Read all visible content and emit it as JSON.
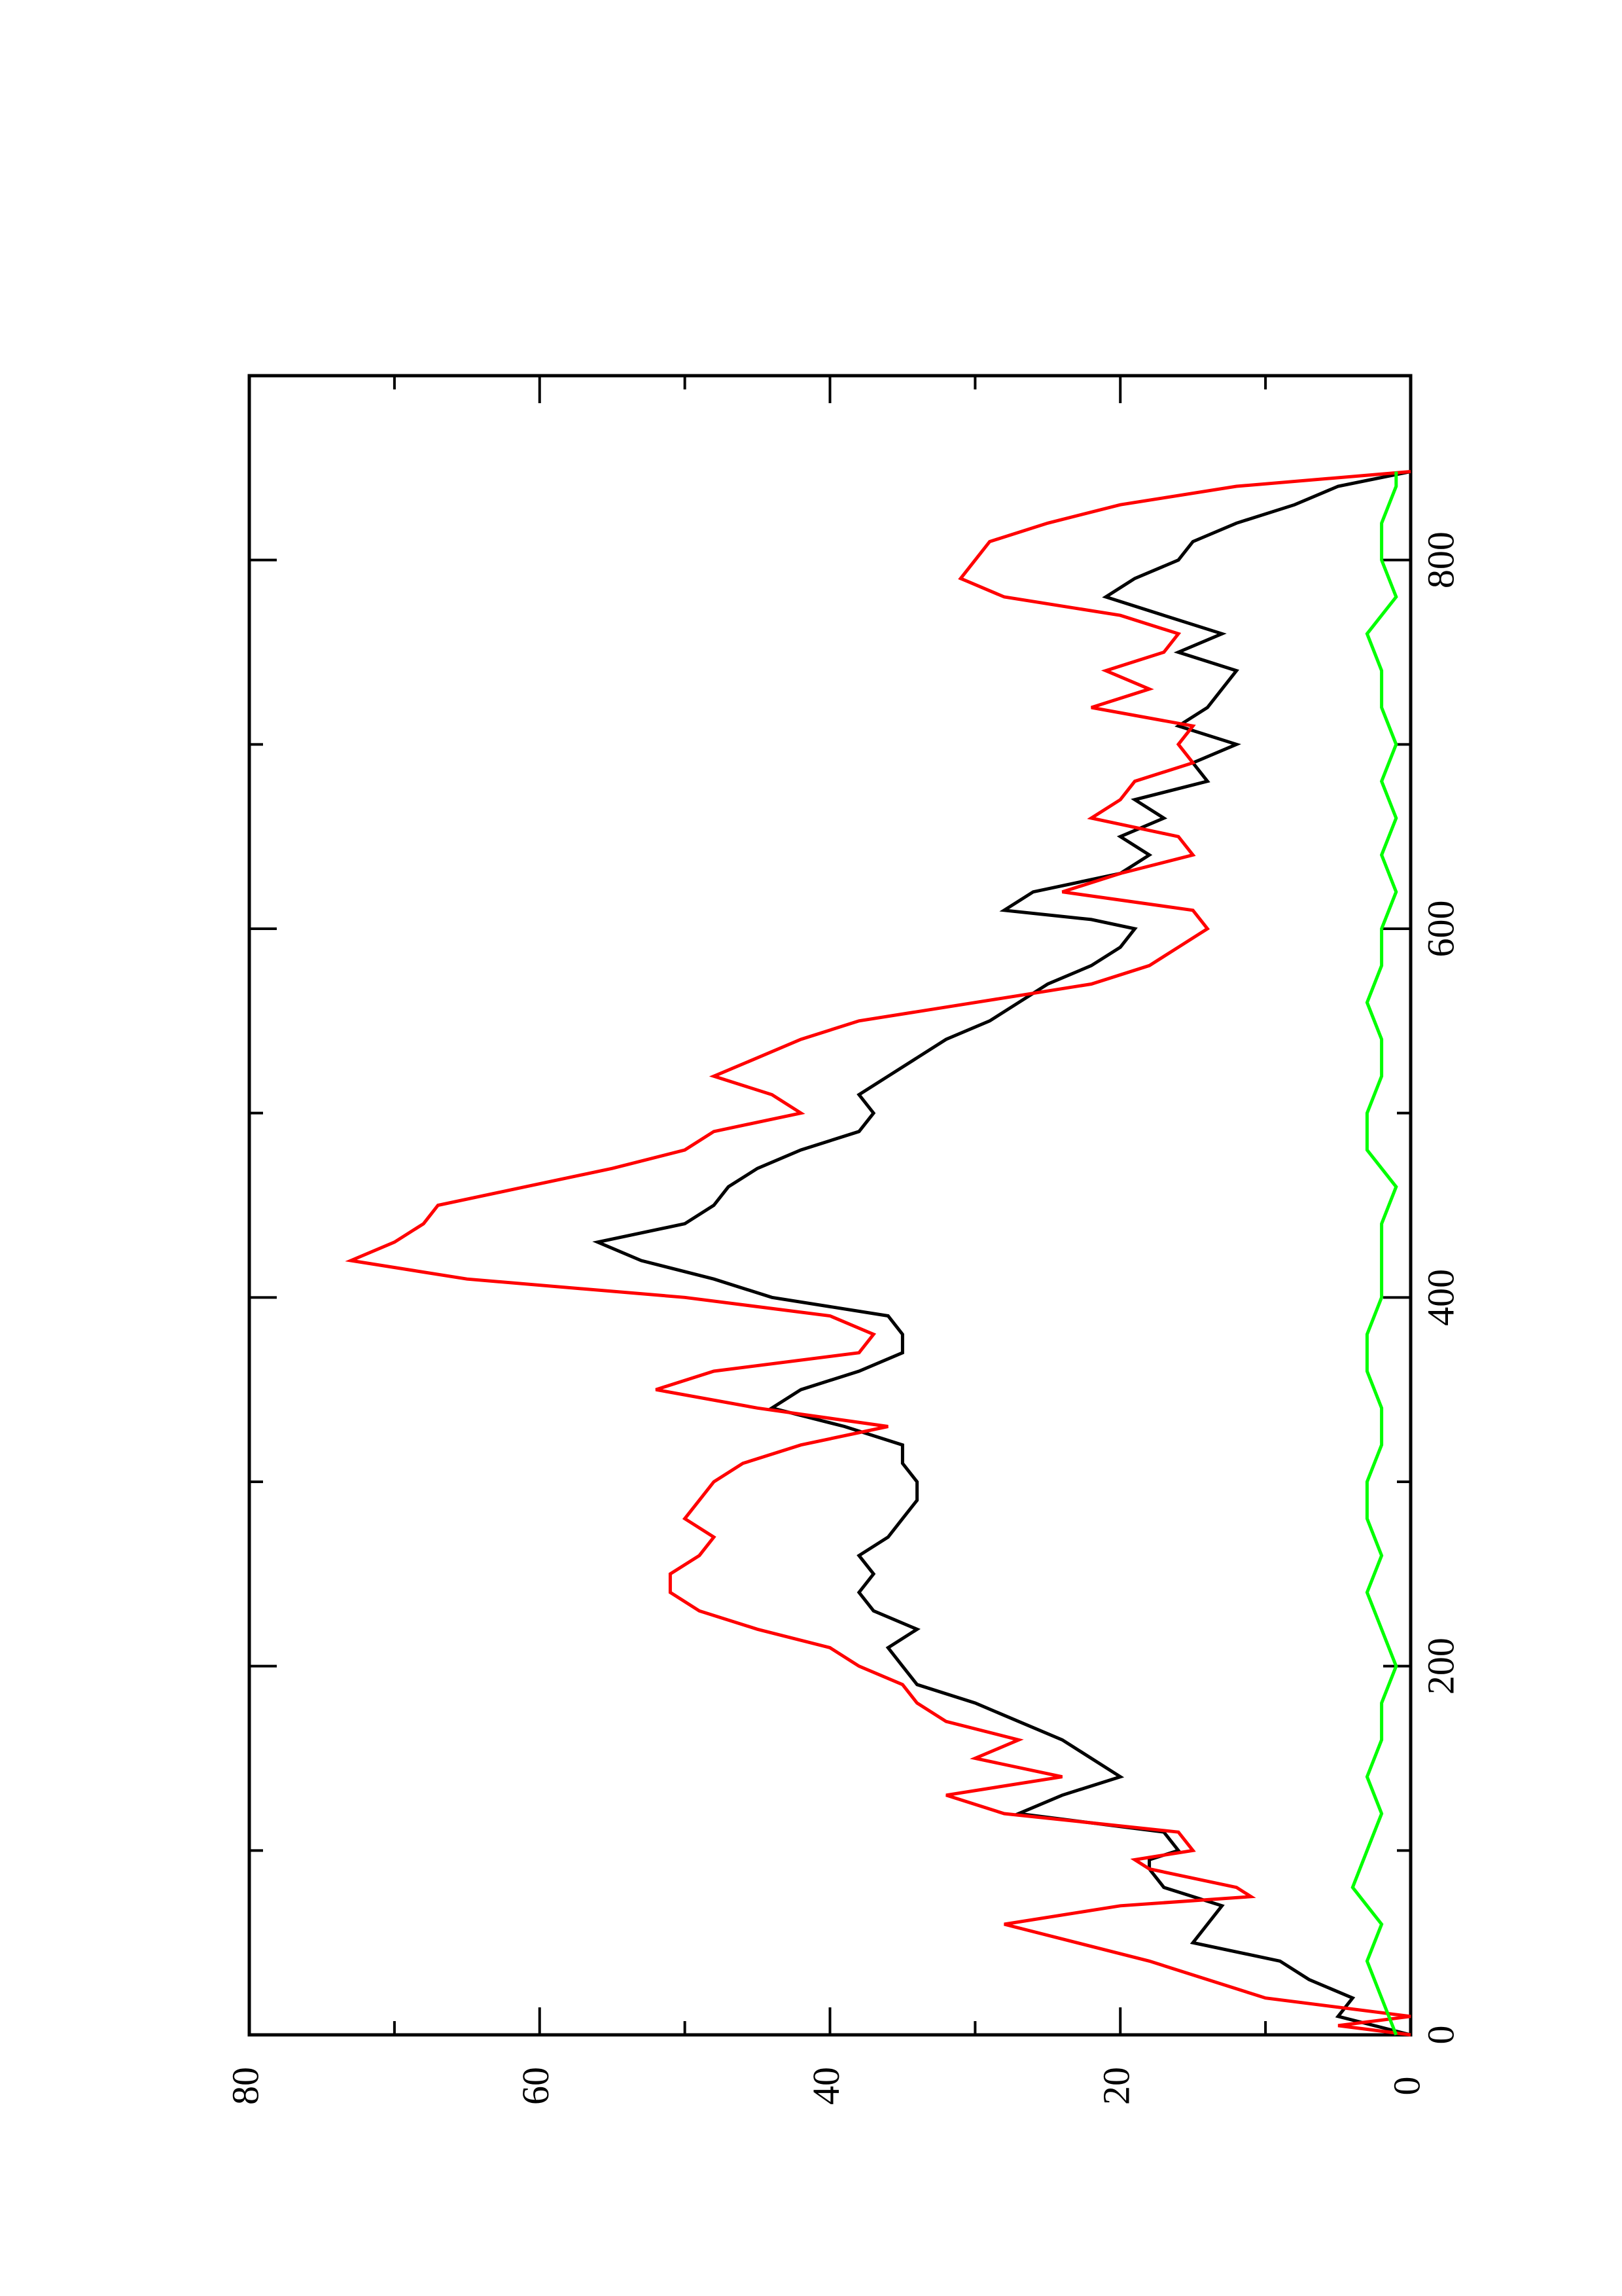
{
  "chart_data": {
    "type": "line",
    "orientation": "rotated 90° counter-clockwise",
    "title": "",
    "xlabel": "",
    "ylabel": "",
    "xlim": [
      0,
      900
    ],
    "ylim": [
      0,
      80
    ],
    "x_ticks": [
      0,
      200,
      400,
      600,
      800
    ],
    "x_minor_ticks": [
      100,
      300,
      500,
      700
    ],
    "y_ticks": [
      0,
      20,
      40,
      60,
      80
    ],
    "y_minor_ticks": [
      10,
      30,
      50,
      70
    ],
    "grid": false,
    "legend": "none",
    "series": [
      {
        "color": "#000000",
        "x": [
          0,
          10,
          20,
          30,
          40,
          50,
          60,
          70,
          80,
          90,
          95,
          100,
          110,
          120,
          130,
          140,
          150,
          160,
          170,
          180,
          190,
          200,
          210,
          220,
          230,
          240,
          250,
          260,
          270,
          280,
          290,
          300,
          310,
          320,
          330,
          340,
          350,
          360,
          370,
          380,
          390,
          400,
          410,
          420,
          430,
          440,
          450,
          460,
          470,
          480,
          490,
          500,
          510,
          520,
          530,
          540,
          550,
          560,
          570,
          580,
          590,
          600,
          605,
          610,
          620,
          630,
          640,
          650,
          660,
          670,
          680,
          690,
          700,
          710,
          720,
          730,
          740,
          750,
          760,
          770,
          780,
          790,
          800,
          810,
          820,
          830,
          840,
          848
        ],
        "y": [
          0,
          5,
          4,
          7,
          9,
          15,
          14,
          13,
          17,
          18,
          18,
          16,
          17,
          27,
          24,
          20,
          22,
          24,
          27,
          30,
          34,
          35,
          36,
          34,
          37,
          38,
          37,
          38,
          36,
          35,
          34,
          34,
          35,
          35,
          39,
          44,
          42,
          38,
          35,
          35,
          36,
          44,
          48,
          53,
          56,
          50,
          48,
          47,
          45,
          42,
          38,
          37,
          38,
          36,
          34,
          32,
          29,
          27,
          25,
          22,
          20,
          19,
          22,
          28,
          26,
          20,
          18,
          20,
          17,
          19,
          14,
          15,
          12,
          16,
          14,
          13,
          12,
          16,
          13,
          17,
          21,
          19,
          16,
          15,
          12,
          8,
          5,
          0
        ],
        "name": ""
      },
      {
        "color": "#ff0000",
        "x": [
          0,
          5,
          10,
          20,
          40,
          60,
          70,
          75,
          80,
          90,
          95,
          100,
          110,
          120,
          130,
          140,
          150,
          160,
          170,
          180,
          190,
          200,
          210,
          220,
          230,
          240,
          250,
          260,
          270,
          280,
          290,
          300,
          310,
          320,
          330,
          340,
          350,
          360,
          370,
          380,
          390,
          400,
          410,
          420,
          430,
          440,
          450,
          460,
          470,
          480,
          490,
          500,
          510,
          520,
          530,
          540,
          550,
          560,
          570,
          580,
          590,
          600,
          610,
          620,
          630,
          640,
          650,
          660,
          670,
          680,
          690,
          700,
          710,
          720,
          730,
          740,
          750,
          760,
          770,
          780,
          790,
          800,
          810,
          820,
          830,
          840,
          848
        ],
        "y": [
          0,
          5,
          0,
          10,
          18,
          28,
          20,
          11,
          12,
          18,
          19,
          15,
          16,
          28,
          32,
          24,
          30,
          27,
          32,
          34,
          35,
          38,
          40,
          45,
          49,
          51,
          51,
          49,
          48,
          50,
          49,
          48,
          46,
          42,
          36,
          45,
          52,
          48,
          38,
          37,
          40,
          50,
          65,
          73,
          70,
          68,
          67,
          61,
          55,
          50,
          48,
          42,
          44,
          48,
          45,
          42,
          38,
          30,
          22,
          18,
          16,
          14,
          15,
          24,
          20,
          15,
          16,
          22,
          20,
          19,
          15,
          16,
          15,
          22,
          18,
          21,
          17,
          16,
          20,
          28,
          31,
          30,
          29,
          25,
          20,
          12,
          0
        ],
        "name": ""
      },
      {
        "color": "#00ff00",
        "x": [
          0,
          20,
          40,
          60,
          80,
          100,
          120,
          140,
          160,
          180,
          200,
          220,
          240,
          260,
          280,
          300,
          320,
          340,
          360,
          380,
          400,
          420,
          440,
          460,
          480,
          500,
          520,
          540,
          560,
          580,
          600,
          620,
          640,
          660,
          680,
          700,
          720,
          740,
          760,
          780,
          800,
          820,
          840,
          848
        ],
        "y": [
          1,
          2,
          3,
          2,
          4,
          3,
          2,
          3,
          2,
          2,
          1,
          2,
          3,
          2,
          3,
          3,
          2,
          2,
          3,
          3,
          2,
          2,
          2,
          1,
          3,
          3,
          2,
          2,
          3,
          2,
          2,
          1,
          2,
          1,
          2,
          1,
          2,
          2,
          3,
          1,
          2,
          2,
          1,
          1
        ],
        "name": ""
      }
    ]
  }
}
